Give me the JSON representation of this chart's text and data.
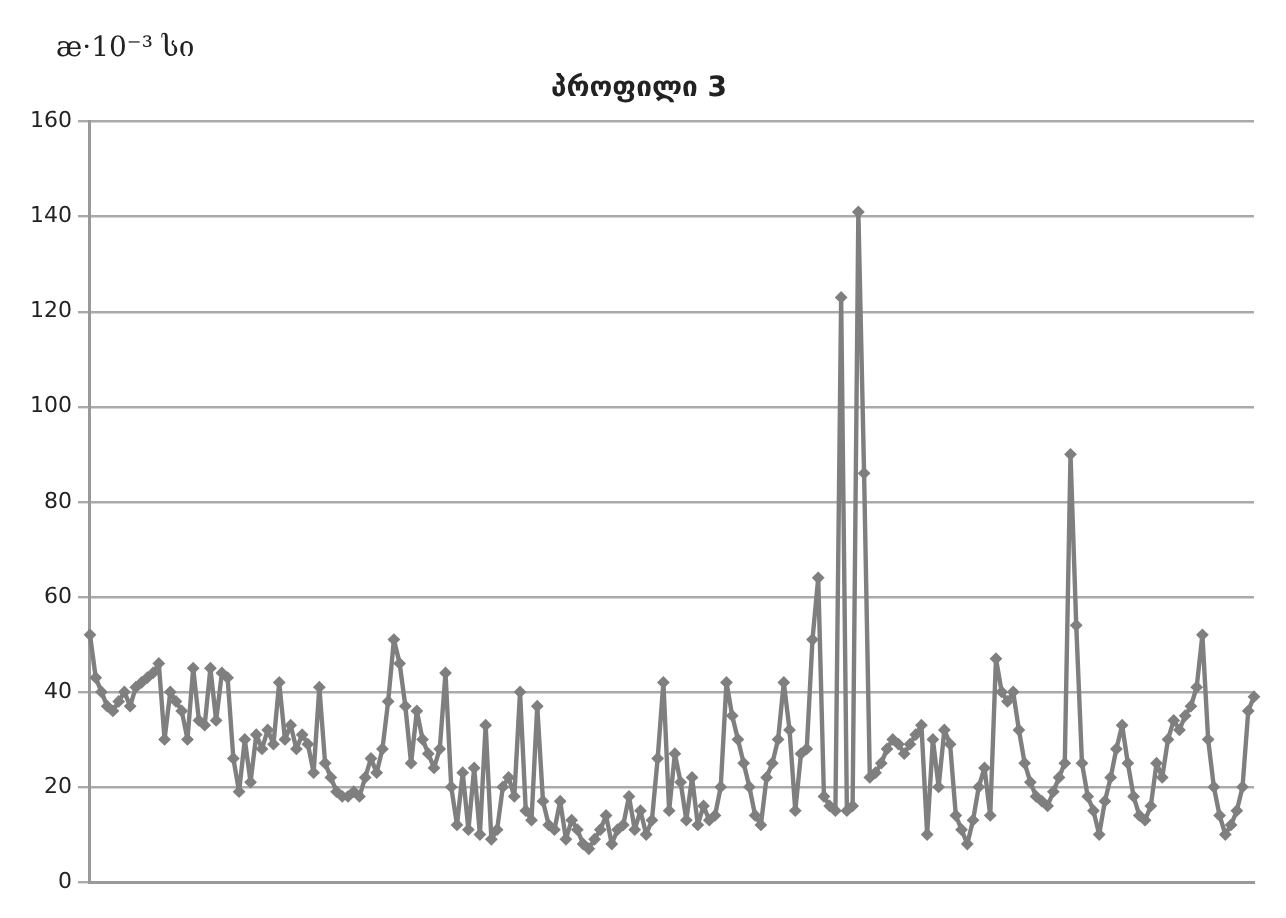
{
  "chart_data": {
    "type": "line",
    "title": "პროფილი 3",
    "ylabel": "æ·10⁻³ სი",
    "categories": [
      null,
      null,
      null,
      null,
      null,
      null,
      null,
      null,
      null,
      null,
      null,
      null,
      null,
      null,
      null,
      null,
      null,
      null,
      null,
      null,
      null,
      null,
      null,
      null,
      null,
      null,
      null,
      null,
      null,
      null,
      null,
      null,
      null,
      null,
      null,
      null,
      null,
      null,
      null,
      null,
      null,
      null,
      null,
      null,
      null,
      null,
      null,
      null,
      null,
      null,
      null,
      null,
      null,
      null,
      null,
      null,
      null,
      null,
      null,
      null,
      null,
      null,
      null,
      null,
      null,
      null,
      null,
      null,
      null,
      null,
      null,
      null,
      null,
      null,
      null,
      null,
      null,
      null,
      null,
      null,
      null,
      null,
      null,
      null,
      null,
      null,
      null,
      null,
      null,
      null,
      null,
      null,
      null,
      null,
      null,
      null,
      null,
      null,
      null,
      null,
      null,
      null,
      null,
      null,
      null,
      null,
      null,
      null,
      null,
      null,
      null,
      null,
      null,
      null,
      null,
      null,
      null,
      null,
      null,
      null,
      null,
      null,
      null,
      null,
      null,
      null,
      null,
      null,
      null,
      null,
      null,
      null,
      null,
      null,
      null,
      null,
      null,
      null,
      null,
      null,
      null,
      null,
      null,
      null,
      null,
      null,
      null,
      null,
      null,
      null,
      null,
      null,
      null,
      null,
      null,
      null,
      null,
      null,
      null,
      null,
      null,
      null,
      null,
      null,
      null,
      null,
      null,
      null,
      null,
      null,
      null,
      null,
      null,
      null,
      null,
      null,
      null,
      null,
      null,
      null,
      null,
      null,
      null,
      null,
      null,
      null,
      null,
      null,
      null,
      null,
      null,
      null,
      null,
      null,
      null,
      null,
      null,
      null,
      null,
      null,
      null,
      null,
      null,
      null
    ],
    "series": [
      {
        "color": "#7f7f7f",
        "values": [
          52,
          43,
          40,
          37,
          36,
          38,
          40,
          37,
          41,
          42,
          43,
          44,
          46,
          30,
          40,
          38,
          36,
          30,
          45,
          34,
          33,
          45,
          34,
          44,
          43,
          26,
          19,
          30,
          21,
          31,
          28,
          32,
          29,
          42,
          30,
          33,
          28,
          31,
          29,
          23,
          41,
          25,
          22,
          19,
          18,
          18,
          19,
          18,
          22,
          26,
          23,
          28,
          38,
          51,
          46,
          37,
          25,
          36,
          30,
          27,
          24,
          28,
          44,
          20,
          12,
          23,
          11,
          24,
          10,
          33,
          9,
          11,
          20,
          22,
          18,
          40,
          15,
          13,
          37,
          17,
          12,
          11,
          17,
          9,
          13,
          11,
          8,
          7,
          9,
          11,
          14,
          8,
          11,
          12,
          18,
          11,
          15,
          10,
          13,
          26,
          42,
          15,
          27,
          21,
          13,
          22,
          12,
          16,
          13,
          14,
          20,
          42,
          35,
          30,
          25,
          20,
          14,
          12,
          22,
          25,
          30,
          42,
          32,
          15,
          27,
          28,
          51,
          64,
          18,
          16,
          15,
          123,
          15,
          16,
          141,
          86,
          22,
          23,
          25,
          28,
          30,
          29,
          27,
          29,
          31,
          33,
          10,
          30,
          20,
          32,
          29,
          14,
          11,
          8,
          13,
          20,
          24,
          14,
          47,
          40,
          38,
          40,
          32,
          25,
          21,
          18,
          17,
          16,
          19,
          22,
          25,
          90,
          54,
          25,
          18,
          15,
          10,
          17,
          22,
          28,
          33,
          25,
          18,
          14,
          13,
          16,
          25,
          22,
          30,
          34,
          32,
          35,
          37,
          41,
          52,
          30,
          20,
          14,
          10,
          12,
          15,
          20,
          36,
          39
        ]
      }
    ],
    "ylim": [
      0,
      160
    ],
    "yticks": [
      0,
      20,
      40,
      60,
      80,
      100,
      120,
      140,
      160
    ],
    "grid": "y",
    "legend": false,
    "tick_labels": "y",
    "marker": "diamond",
    "line_style": "solid"
  }
}
